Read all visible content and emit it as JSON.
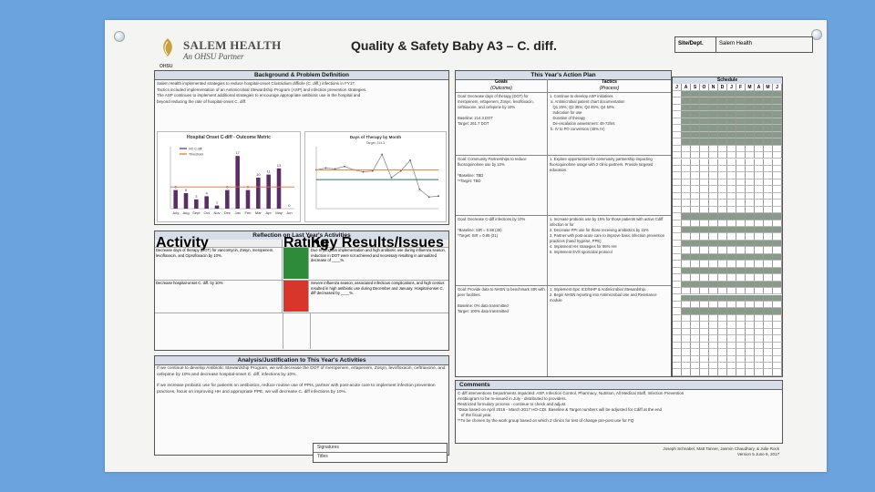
{
  "brand": {
    "name": "SALEM HEALTH",
    "tagline": "An OHSU Partner",
    "mark_label": "OHSU"
  },
  "title": "Quality & Safety Baby A3 – C. diff.",
  "site": {
    "label": "Site/Dept.",
    "value": "Salem Health"
  },
  "background": {
    "heading": "Background & Problem Definition",
    "lines": [
      "Salem Health implemented strategies to reduce hospital-onset Clostridium difficile (C. diff.) infections in FY17.",
      "Tactics included implementation of an Antimicrobial Stewardship Program (ASP) and infection prevention strategies.",
      "The ASP continues to implement additional strategies to encourage appropriate antibiotic use in the hospital and",
      "beyond reducing the rate of hospital-onset C. diff."
    ]
  },
  "chart_left": {
    "title": "Hospital Onset C-diff - Outcome Metric",
    "legend": [
      "HO C-diff",
      "Threshold"
    ]
  },
  "chart_right": {
    "title": "Days of Therapy by Month",
    "subtitle": "Target: 214.3"
  },
  "chart_data": [
    {
      "type": "bar",
      "title": "Hospital Onset C-diff - Outcome Metric",
      "categories": [
        "July",
        "Aug",
        "Sept",
        "Oct",
        "Nov",
        "Dec",
        "Jan",
        "Feb",
        "Mar",
        "Apr",
        "May",
        "Jun"
      ],
      "series": [
        {
          "name": "HO C-diff",
          "values": [
            6,
            5,
            3,
            4,
            1,
            6,
            17,
            6,
            10,
            11,
            13,
            0
          ]
        },
        {
          "name": "Threshold",
          "values": [
            7,
            7,
            7,
            7,
            7,
            7,
            7,
            7,
            7,
            7,
            7,
            7
          ]
        }
      ],
      "ylim": [
        0,
        20
      ]
    },
    {
      "type": "line",
      "title": "Days of Therapy by Month",
      "series": [
        {
          "values": [
            300,
            310,
            305,
            318,
            300,
            290,
            295,
            380,
            260,
            295,
            350,
            200,
            160,
            165
          ]
        },
        {
          "values": [
            300,
            300,
            300,
            300,
            300,
            300,
            300,
            300,
            300,
            300,
            300,
            300,
            300,
            300
          ]
        },
        {
          "values": [
            250,
            250,
            250,
            250,
            250,
            250,
            250,
            250,
            250,
            250,
            250,
            250,
            250,
            250
          ]
        }
      ]
    }
  ],
  "reflection": {
    "heading": "Reflection on Last Year's Activities",
    "columns": [
      "Activity",
      "Rating",
      "Key Results/Issues"
    ],
    "rows": [
      {
        "activity": "Decrease days of therapy (DOT) for vancomycin, Zosyn, meropenem, levofloxacin, and Ciprofloxacin by 10%.",
        "rating_color": "#2e8b3a",
        "results": "Due to program implementation and high antibiotic use during influenza season, reduction in DOT were not achieved and necessary resulting in annualized decrease of ____%."
      },
      {
        "activity": "Decrease hospital-onset C. diff. by 10%",
        "rating_color": "#d9362b",
        "results": "Severe influenza season, associated infectious complications, and high census resulted in high antibiotic use during December and January. Hospital-onset C. diff decreased by ____%."
      }
    ]
  },
  "analysis": {
    "heading": "Analysis/Justification to This Year's Activities",
    "p1": "If we continue to develop Antibiotic Stewardship Program, we will decrease the DOT of meropenem, ertapenem, Zosyn, levofloxacin, ceftriaxone, and cefepime by 10% and decrease hospital-onset C. diff. infections by 10%.",
    "p2": "If we increase probiotic use for patients on antibiotics, reduce routine use of PPIs, partner with post-acute care to implement infection prevention practices, focus on improving HH and appropriate PPE, we will decrease C. diff infections by 10%."
  },
  "plan": {
    "heading": "This Year's Action Plan",
    "goals_label": "Goals",
    "goals_sub": "(Outcome)",
    "tactics_label": "Tactics",
    "tactics_sub": "(Process)",
    "rows": [
      {
        "goal": "Goal: Decrease days of therapy (DOT) for meropenem, ertapenem, Zosyn, levofloxacin, ceftriaxone, and cefepime by 10%\n\nBaseline: 214.3 DOT\nTarget: 261.7 DOT",
        "tactics": "1. Continue to develop ASP initiatives\n a. Antimicrobial patient chart documentation\n   Q1 25%; Q2 35%; Q3 45%; Q4 50%\n   Indication for use\n   Duration of therapy\n   De-escalation assessment: 48-72hrs\n b. IV to PO conversion (45% IV)"
      },
      {
        "goal": "Goal: Community Partnerships to reduce fluoroquinolone use by 10%\n\n*Baseline: TBD\n**Target: TBD",
        "tactics": "1. Explore opportunities for community partnership impacting fluoroquinolone usage with 2 clinic partners. Provide targeted education."
      },
      {
        "goal": "Goal: Decrease C-diff infections by 10%\n\n*Baseline: SIR = 0.98 (35)\n*Target: SIR = 0.89 (31)",
        "tactics": "1. Increase probiotic use by 15% for those patients with active Cdiff infection or for\n2. Decrease PPI use for those receiving antibiotics by 15%\n3. Partner with post-acute care to improve basic infection prevention practices (hand hygiene, PPE)\n4. Implement HH strategies for 95% HH\n5. Implement EVS sporicidal protocol"
      },
      {
        "goal": "Goal: Provide data to NHSN to benchmark SIR with peer facilities.\n\nBaseline: 0% data transmitted\nTarget: 100% data transmitted",
        "tactics": "1. Implement Epic ICD/NHP & Antimicrobial Stewardship.\n2. Begin NHSN reporting into Antimicrobial Use and Resistance module"
      }
    ]
  },
  "schedule": {
    "heading": "Schedule",
    "months": [
      "J",
      "A",
      "S",
      "O",
      "N",
      "D",
      "J",
      "F",
      "M",
      "A",
      "M",
      "J"
    ]
  },
  "comments": {
    "heading": "Comments",
    "lines": [
      "C-diff interventions Departments impacted: ASP, Infection Control, Pharmacy, Nutrition, All Medical Staff, Infection Prevention",
      "Antibiogram to be re-issued in July - distributed to providers.",
      "Restricted formulary process - continue to check and adjust.",
      "*Data based on April 2016 - March 2017 HO-CDI. Baseline & Target numbers will be adjusted for Cdiff at the end",
      "   of the fiscal year.",
      "**To be chosen by the work group based on which 2 clinics for test of change pre-post use for FQ"
    ],
    "footer1": "Joseph Schnabel, Matt Tanner, Jasmin Chaudhary, & Julie Rock",
    "footer2": "Version 5 June 9, 2017"
  },
  "signatures": {
    "label1": "Signatures",
    "label2": "Titles"
  }
}
